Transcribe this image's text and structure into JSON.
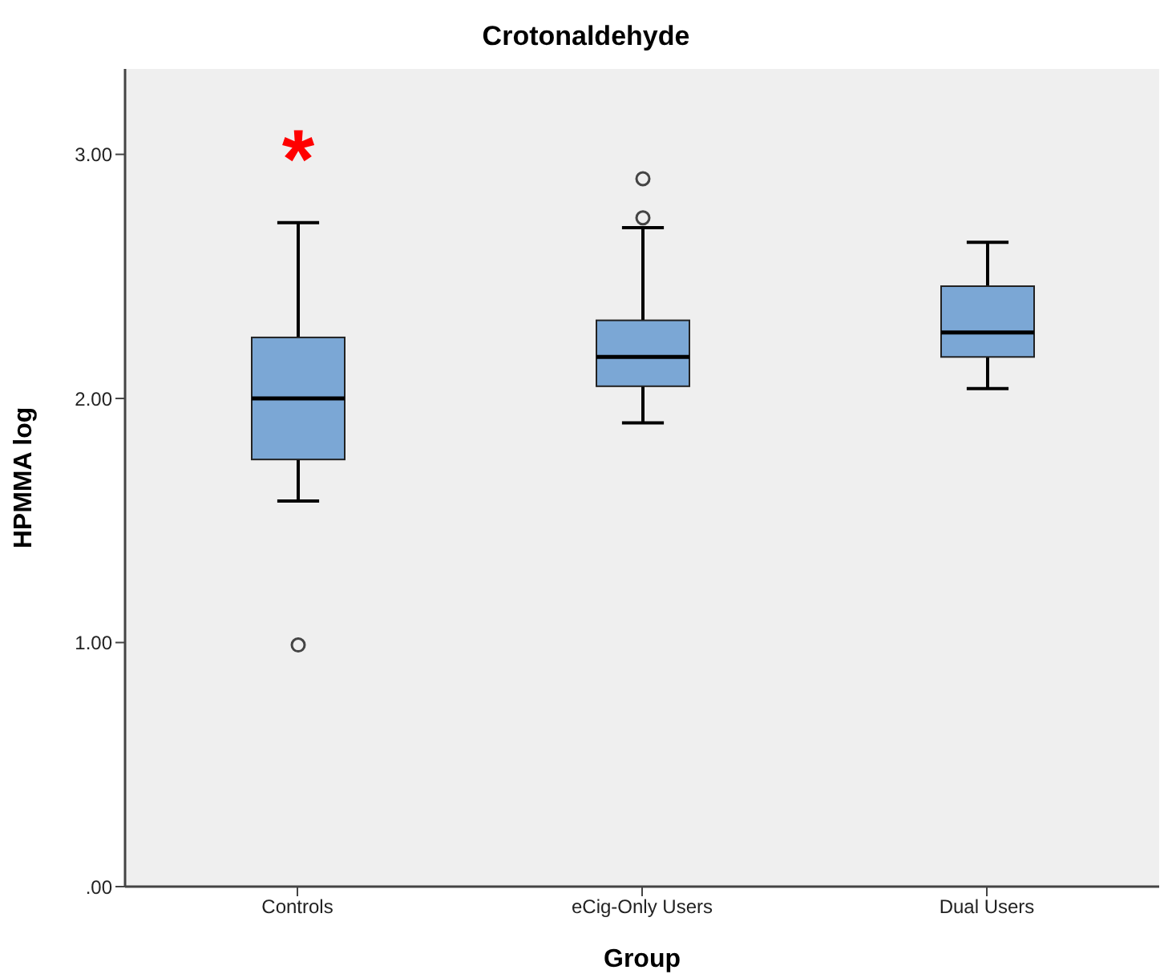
{
  "chart_data": {
    "type": "box",
    "title": "Crotonaldehyde",
    "xlabel": "Group",
    "ylabel": "HPMMA log",
    "categories": [
      "Controls",
      "eCig-Only Users",
      "Dual Users"
    ],
    "color": "#7ba7d5",
    "boxes": [
      {
        "low": 1.58,
        "q1": 1.75,
        "median": 2.0,
        "q3": 2.25,
        "high": 2.72,
        "outliers": [
          0.99
        ]
      },
      {
        "low": 1.9,
        "q1": 2.05,
        "median": 2.17,
        "q3": 2.32,
        "high": 2.7,
        "outliers": [
          2.74,
          2.9
        ]
      },
      {
        "low": 2.04,
        "q1": 2.17,
        "median": 2.27,
        "q3": 2.46,
        "high": 2.64
      }
    ],
    "annotations": [
      "*"
    ],
    "ylim": [
      0,
      3.35
    ],
    "yticks": [
      {
        "value": 0,
        "label": ".00"
      },
      {
        "value": 1,
        "label": "1.00"
      },
      {
        "value": 2,
        "label": "2.00"
      },
      {
        "value": 3,
        "label": "3.00"
      }
    ]
  }
}
